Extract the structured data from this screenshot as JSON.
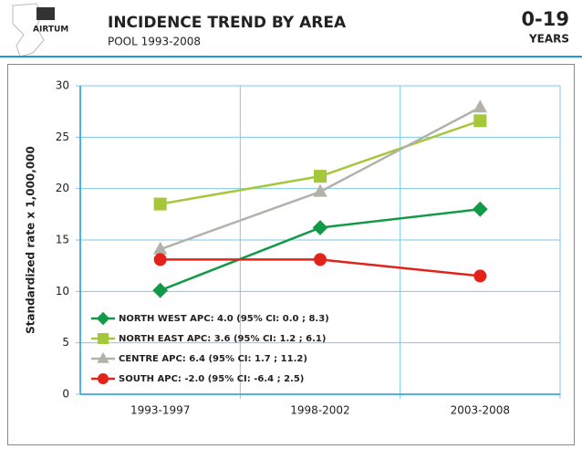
{
  "header": {
    "logo": "AIRTUM",
    "title": "INCIDENCE TREND BY AREA",
    "subtitle": "POOL 1993-2008",
    "age": "0-19",
    "age_unit": "YEARS"
  },
  "chart_data": {
    "type": "line",
    "y_label": "Standardized rate x 1,000,000",
    "categories": [
      "1993-1997",
      "1998-2002",
      "2003-2008"
    ],
    "ylim": [
      0,
      30
    ],
    "yticks": [
      0,
      5,
      10,
      15,
      20,
      25,
      30
    ],
    "grid": true,
    "legend": "lower-left",
    "series": [
      {
        "name": "NORTH WEST APC: 4.0 (95% CI: 0.0 ; 8.3)",
        "color": "#139a48",
        "marker": "diamond",
        "values": [
          10.1,
          16.2,
          18.0
        ]
      },
      {
        "name": "NORTH EAST APC: 3.6 (95% CI: 1.2 ; 6.1)",
        "color": "#a5c73a",
        "marker": "square",
        "values": [
          18.5,
          21.2,
          26.6
        ]
      },
      {
        "name": "CENTRE APC: 6.4 (95% CI: 1.7 ; 11.2)",
        "color": "#b3b2aa",
        "marker": "triangle",
        "values": [
          14.1,
          19.7,
          27.9
        ]
      },
      {
        "name": "SOUTH APC: -2.0 (95% CI: -6.4 ; 2.5)",
        "color": "#e2231a",
        "marker": "circle",
        "values": [
          13.1,
          13.1,
          11.5
        ]
      }
    ]
  }
}
